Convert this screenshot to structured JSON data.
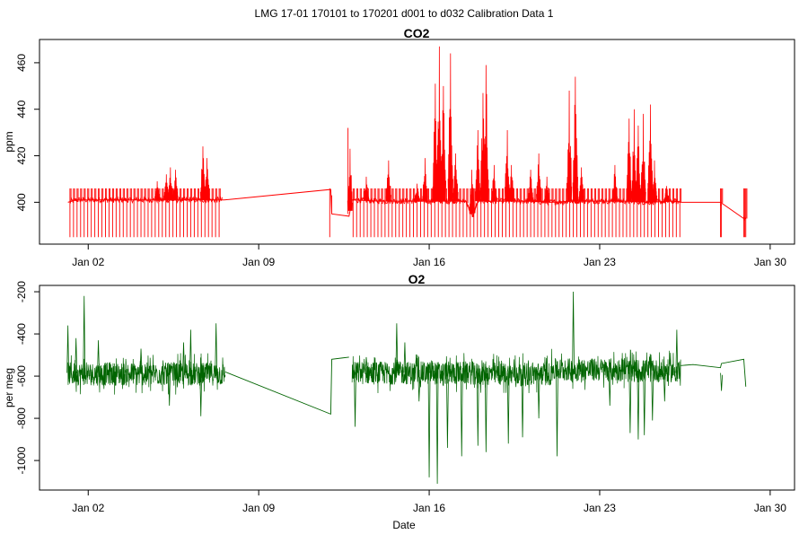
{
  "figure": {
    "main_title": "LMG   17-01    170101 to 170201    d001 to d032   Calibration Data 1",
    "xlabel": "Date"
  },
  "chart_data": [
    {
      "type": "line",
      "title": "CO2",
      "xlabel": "",
      "ylabel": "ppm",
      "color": "#ff0000",
      "x_ticks": [
        "2017-01-02",
        "2017-01-09",
        "2017-01-16",
        "2017-01-23",
        "2017-01-30"
      ],
      "x_tick_labels": [
        "Jan 02",
        "Jan 09",
        "Jan 16",
        "Jan 23",
        "Jan 30"
      ],
      "xlim": [
        "2016-12-31T00:00",
        "2017-01-31T00:00"
      ],
      "y_ticks": [
        400,
        420,
        440,
        460
      ],
      "y_tick_labels": [
        "400",
        "420",
        "440",
        "460"
      ],
      "ylim": [
        382,
        470
      ],
      "baseline": [
        [
          "2017-01-01T04:00",
          400
        ],
        [
          "2017-01-01T12:00",
          401
        ],
        [
          "2017-01-03T00:00",
          401
        ],
        [
          "2017-01-04T00:00",
          401
        ],
        [
          "2017-01-05T00:00",
          401
        ],
        [
          "2017-01-06T00:00",
          401
        ],
        [
          "2017-01-07T00:00",
          401
        ],
        [
          "2017-01-07T14:00",
          401
        ],
        [
          "2017-01-11T23:00",
          405.5
        ],
        [
          "2017-01-12T00:00",
          395
        ],
        [
          "2017-01-12T17:00",
          394
        ],
        [
          "2017-01-12T20:00",
          401
        ],
        [
          "2017-01-14T00:00",
          400.5
        ],
        [
          "2017-01-16T00:00",
          400.5
        ],
        [
          "2017-01-17T12:00",
          400.5
        ],
        [
          "2017-01-17T19:00",
          394
        ],
        [
          "2017-01-18T00:00",
          400.5
        ],
        [
          "2017-01-20T00:00",
          400.5
        ],
        [
          "2017-01-21T00:00",
          400
        ],
        [
          "2017-01-22T00:00",
          400.5
        ],
        [
          "2017-01-24T00:00",
          400.5
        ],
        [
          "2017-01-25T00:00",
          400
        ],
        [
          "2017-01-26T00:00",
          400.5
        ],
        [
          "2017-01-26T09:00",
          400
        ],
        [
          "2017-01-27T23:00",
          400
        ],
        [
          "2017-01-28T22:00",
          393
        ],
        [
          "2017-01-29T00:00",
          393
        ]
      ],
      "calibration_cycles": {
        "low": 385,
        "high": 406,
        "segments": [
          {
            "from": "2017-01-01T06:00",
            "to": "2017-01-07T12:00",
            "interval_hours": 3.5
          },
          {
            "from": "2017-01-12T21:00",
            "to": "2017-01-26T08:00",
            "interval_hours": 3.5
          },
          {
            "from": "2017-01-27T23:00",
            "to": "2017-01-28T00:00",
            "interval_hours": 1
          },
          {
            "from": "2017-01-28T22:00",
            "to": "2017-01-29T00:00",
            "interval_hours": 1
          }
        ],
        "extra": [
          [
            "2017-01-11T22:00",
            385,
            406
          ],
          [
            "2017-01-12T00:00",
            395,
            403
          ],
          [
            "2017-01-12T16:00",
            395,
            432
          ]
        ]
      },
      "spikes": [
        [
          "2017-01-05T05:00",
          412
        ],
        [
          "2017-01-05T09:00",
          415
        ],
        [
          "2017-01-05T14:00",
          414
        ],
        [
          "2017-01-04T20:00",
          409
        ],
        [
          "2017-01-06T17:00",
          424
        ],
        [
          "2017-01-06T21:00",
          419
        ],
        [
          "2017-01-12T18:00",
          423
        ],
        [
          "2017-01-13T10:00",
          411
        ],
        [
          "2017-01-14T08:00",
          418
        ],
        [
          "2017-01-15T12:00",
          408
        ],
        [
          "2017-01-15T20:00",
          419
        ],
        [
          "2017-01-16T06:00",
          451
        ],
        [
          "2017-01-16T10:00",
          467
        ],
        [
          "2017-01-16T14:00",
          450
        ],
        [
          "2017-01-16T21:00",
          464
        ],
        [
          "2017-01-17T02:00",
          421
        ],
        [
          "2017-01-17T18:00",
          414
        ],
        [
          "2017-01-18T00:00",
          431
        ],
        [
          "2017-01-18T05:00",
          447
        ],
        [
          "2017-01-18T08:00",
          459
        ],
        [
          "2017-01-18T16:00",
          416
        ],
        [
          "2017-01-19T05:00",
          431
        ],
        [
          "2017-01-19T09:00",
          416
        ],
        [
          "2017-01-20T04:00",
          414
        ],
        [
          "2017-01-20T12:00",
          421
        ],
        [
          "2017-01-20T20:00",
          411
        ],
        [
          "2017-01-21T18:00",
          448
        ],
        [
          "2017-01-22T00:00",
          454
        ],
        [
          "2017-01-22T06:00",
          415
        ],
        [
          "2017-01-23T15:00",
          416
        ],
        [
          "2017-01-24T05:00",
          436
        ],
        [
          "2017-01-24T10:00",
          440
        ],
        [
          "2017-01-24T14:00",
          433
        ],
        [
          "2017-01-24T19:00",
          438
        ],
        [
          "2017-01-25T02:00",
          442
        ],
        [
          "2017-01-25T06:00",
          418
        ],
        [
          "2017-01-25T18:00",
          407
        ]
      ]
    },
    {
      "type": "line",
      "title": "O2",
      "xlabel": "Date",
      "ylabel": "per meg",
      "color": "#006400",
      "x_ticks": [
        "2017-01-02",
        "2017-01-09",
        "2017-01-16",
        "2017-01-23",
        "2017-01-30"
      ],
      "x_tick_labels": [
        "Jan 02",
        "Jan 09",
        "Jan 16",
        "Jan 23",
        "Jan 30"
      ],
      "xlim": [
        "2016-12-31T00:00",
        "2017-01-31T00:00"
      ],
      "y_ticks": [
        -1000,
        -800,
        -600,
        -400,
        -200
      ],
      "y_tick_labels": [
        "-1000",
        "-800",
        "-600",
        "-400",
        "-200"
      ],
      "ylim": [
        -1140,
        -170
      ],
      "noise_amplitude": 55,
      "segments": [
        {
          "from": "2017-01-01T04:00",
          "to": "2017-01-07T15:00",
          "level": -590
        },
        {
          "from": "2017-01-12T20:00",
          "to": "2017-01-17T20:00",
          "level": -585
        },
        {
          "from": "2017-01-17T20:00",
          "to": "2017-01-21T00:00",
          "level": -590
        },
        {
          "from": "2017-01-21T00:00",
          "to": "2017-01-24T00:00",
          "level": -570
        },
        {
          "from": "2017-01-24T00:00",
          "to": "2017-01-26T08:00",
          "level": -575
        }
      ],
      "connectors": [
        [
          "2017-01-07T15:00",
          -580
        ],
        [
          "2017-01-11T23:00",
          -780
        ],
        [
          "2017-01-12T00:00",
          -520
        ],
        [
          "2017-01-12T17:00",
          -510
        ],
        [
          "2017-01-26T08:00",
          -550
        ],
        [
          "2017-01-26T20:00",
          -545
        ],
        [
          "2017-01-27T23:00",
          -560
        ],
        [
          "2017-01-28T00:00",
          -540
        ],
        [
          "2017-01-28T22:00",
          -520
        ],
        [
          "2017-01-29T00:00",
          -650
        ]
      ],
      "spikes": [
        [
          "2017-01-01T20:00",
          -220
        ],
        [
          "2017-01-01T04:00",
          -360
        ],
        [
          "2017-01-01T12:00",
          -420
        ],
        [
          "2017-01-02T10:00",
          -430
        ],
        [
          "2017-01-04T04:00",
          -470
        ],
        [
          "2017-01-05T08:00",
          -740
        ],
        [
          "2017-01-05T22:00",
          -440
        ],
        [
          "2017-01-06T05:00",
          -380
        ],
        [
          "2017-01-06T15:00",
          -790
        ],
        [
          "2017-01-07T06:00",
          -350
        ],
        [
          "2017-01-12T23:00",
          -840
        ],
        [
          "2017-01-13T10:00",
          -510
        ],
        [
          "2017-01-14T16:00",
          -350
        ],
        [
          "2017-01-15T00:00",
          -440
        ],
        [
          "2017-01-15T14:00",
          -720
        ],
        [
          "2017-01-16T00:00",
          -1080
        ],
        [
          "2017-01-16T08:00",
          -1110
        ],
        [
          "2017-01-16T18:00",
          -940
        ],
        [
          "2017-01-17T08:00",
          -980
        ],
        [
          "2017-01-18T00:00",
          -930
        ],
        [
          "2017-01-18T08:00",
          -960
        ],
        [
          "2017-01-19T06:00",
          -920
        ],
        [
          "2017-01-19T20:00",
          -890
        ],
        [
          "2017-01-20T12:00",
          -800
        ],
        [
          "2017-01-21T06:00",
          -980
        ],
        [
          "2017-01-21T22:00",
          -200
        ],
        [
          "2017-01-23T10:00",
          -740
        ],
        [
          "2017-01-24T06:00",
          -870
        ],
        [
          "2017-01-24T14:00",
          -900
        ],
        [
          "2017-01-24T20:00",
          -880
        ],
        [
          "2017-01-25T04:00",
          -810
        ],
        [
          "2017-01-25T16:00",
          -720
        ],
        [
          "2017-01-26T04:00",
          -380
        ],
        [
          "2017-01-28T00:00",
          -670
        ]
      ]
    }
  ]
}
